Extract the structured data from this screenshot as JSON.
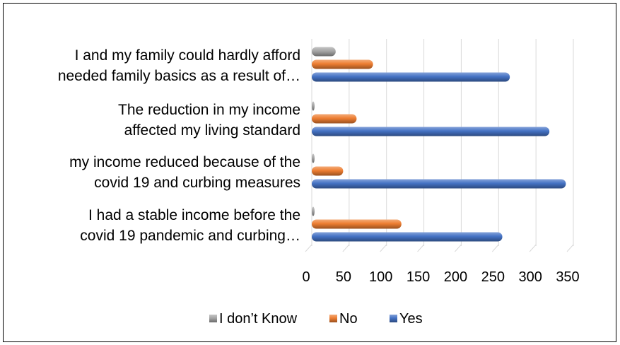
{
  "chart_data": {
    "type": "bar",
    "orientation": "horizontal",
    "categories": [
      [
        "I had a stable income before the",
        "covid 19 pandemic and curbing…"
      ],
      [
        "my income reduced because of the",
        "covid 19 and curbing measures"
      ],
      [
        "The reduction in my income",
        "affected my living standard"
      ],
      [
        "I and my family could hardly afford",
        "needed family basics as a result of…"
      ]
    ],
    "series": [
      {
        "name": "Yes",
        "color": "#4472C4",
        "values": [
          255,
          340,
          318,
          265
        ]
      },
      {
        "name": "No",
        "color": "#ED7D31",
        "values": [
          120,
          42,
          60,
          82
        ]
      },
      {
        "name": "I don’t Know",
        "color": "#A5A5A5",
        "values": [
          2,
          1,
          3,
          32
        ]
      }
    ],
    "x_ticks": [
      "0",
      "50",
      "100",
      "150",
      "200",
      "250",
      "300",
      "350"
    ],
    "xlim": [
      0,
      350
    ],
    "grid": true,
    "legend_position": "bottom",
    "legend_order": [
      "I don’t Know",
      "No",
      "Yes"
    ]
  }
}
